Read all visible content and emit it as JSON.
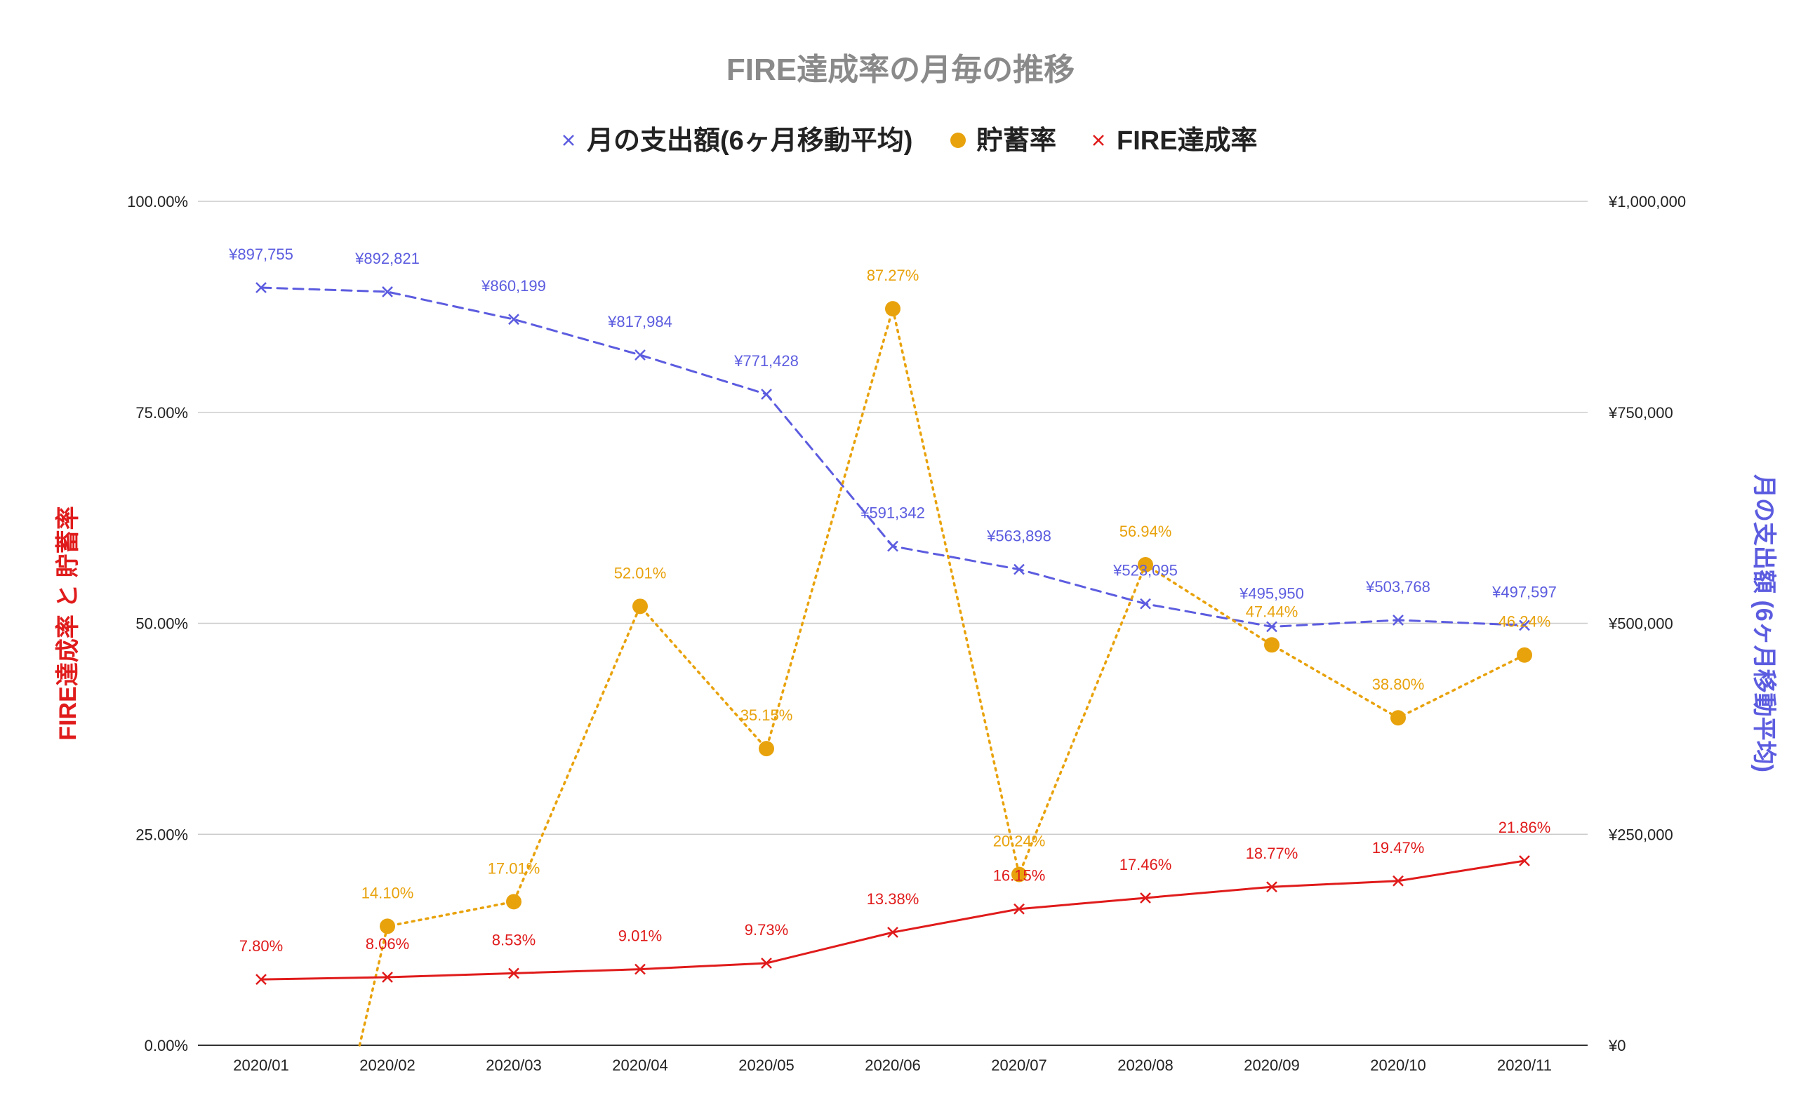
{
  "colors": {
    "spending": "#5c5ce0",
    "savings": "#e8a20c",
    "fire": "#e01b1b",
    "grid": "#cccccc",
    "title": "#8a8a8a"
  },
  "chart_data": {
    "type": "line",
    "title": "FIRE達成率の月毎の推移",
    "legend_position": "top",
    "grid": true,
    "categories": [
      "2020/01",
      "2020/02",
      "2020/03",
      "2020/04",
      "2020/05",
      "2020/06",
      "2020/07",
      "2020/08",
      "2020/09",
      "2020/10",
      "2020/11"
    ],
    "left_axis": {
      "title": "FIRE達成率 と 貯蓄率",
      "range": [
        0,
        100
      ],
      "ticks": [
        0,
        25,
        50,
        75,
        100
      ],
      "tick_labels": [
        "0.00%",
        "25.00%",
        "50.00%",
        "75.00%",
        "100.00%"
      ]
    },
    "right_axis": {
      "title": "月の支出額 (6ヶ月移動平均)",
      "range": [
        0,
        1000000
      ],
      "ticks": [
        0,
        250000,
        500000,
        750000,
        1000000
      ],
      "tick_labels": [
        "¥0",
        "¥250,000",
        "¥500,000",
        "¥750,000",
        "¥1,000,000"
      ]
    },
    "series": [
      {
        "key": "spending",
        "name": "月の支出額(6ヶ月移動平均)",
        "axis": "right",
        "style": "dashed",
        "marker": "x",
        "values": [
          897755,
          892821,
          860199,
          817984,
          771428,
          591342,
          563898,
          523095,
          495950,
          503768,
          497597
        ],
        "labels": [
          "¥897,755",
          "¥892,821",
          "¥860,199",
          "¥817,984",
          "¥771,428",
          "¥591,342",
          "¥563,898",
          "¥523,095",
          "¥495,950",
          "¥503,768",
          "¥497,597"
        ]
      },
      {
        "key": "savings",
        "name": "貯蓄率",
        "axis": "left",
        "style": "dotted",
        "marker": "circle",
        "values": [
          null,
          14.1,
          17.01,
          52.01,
          35.15,
          87.27,
          20.24,
          56.94,
          47.44,
          38.8,
          46.24
        ],
        "labels": [
          "",
          "14.10%",
          "17.01%",
          "52.01%",
          "35.15%",
          "87.27%",
          "20.24%",
          "56.94%",
          "47.44%",
          "38.80%",
          "46.24%"
        ]
      },
      {
        "key": "fire",
        "name": "FIRE達成率",
        "axis": "left",
        "style": "solid",
        "marker": "x",
        "values": [
          7.8,
          8.06,
          8.53,
          9.01,
          9.73,
          13.38,
          16.15,
          17.46,
          18.77,
          19.47,
          21.86
        ],
        "labels": [
          "7.80%",
          "8.06%",
          "8.53%",
          "9.01%",
          "9.73%",
          "13.38%",
          "16.15%",
          "17.46%",
          "18.77%",
          "19.47%",
          "21.86%"
        ]
      }
    ]
  }
}
